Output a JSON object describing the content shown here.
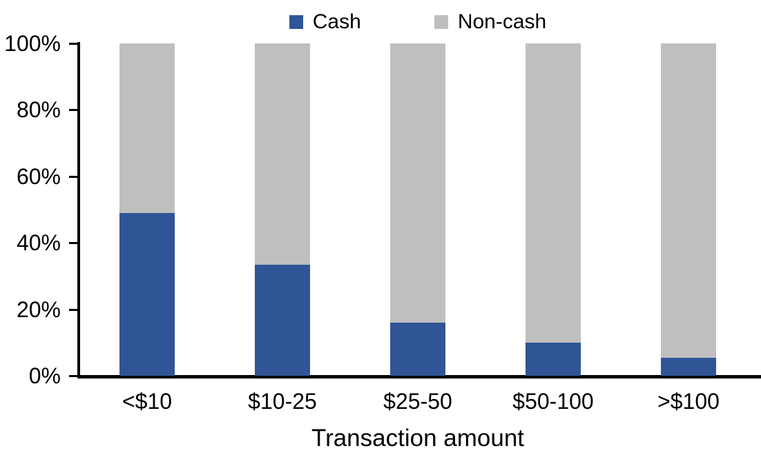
{
  "chart_data": {
    "type": "bar",
    "variant": "stacked-100-percent",
    "title": "",
    "xlabel": "Transaction amount",
    "ylabel": "",
    "categories": [
      "<$10",
      "$10-25",
      "$25-50",
      "$50-100",
      ">$100"
    ],
    "series": [
      {
        "name": "Cash",
        "color": "#2F5596",
        "values": [
          49,
          33.5,
          16,
          10,
          5.5
        ]
      },
      {
        "name": "Non-cash",
        "color": "#BFBFBF",
        "values": [
          51,
          66.5,
          84,
          90,
          94.5
        ]
      }
    ],
    "ylim": [
      0,
      100
    ],
    "yticks": [
      "0%",
      "20%",
      "40%",
      "60%",
      "80%",
      "100%"
    ],
    "grid": false,
    "legend_position": "top-center",
    "axis_color": "#000000",
    "text_color": "#000000",
    "background": "#FFFFFF"
  }
}
